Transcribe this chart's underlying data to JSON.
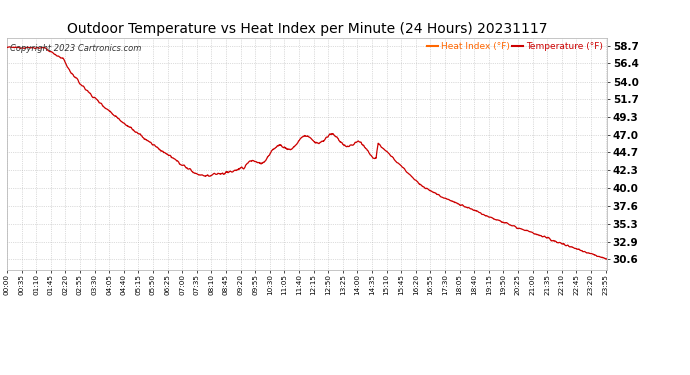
{
  "title": "Outdoor Temperature vs Heat Index per Minute (24 Hours) 20231117",
  "copyright_text": "Copyright 2023 Cartronics.com",
  "legend_heat_index": "Heat Index (°F)",
  "legend_temperature": "Temperature (°F)",
  "line_color": "#CC0000",
  "background_color": "#ffffff",
  "grid_color": "#aaaaaa",
  "title_fontsize": 10,
  "copyright_color": "#333333",
  "legend_heat_color": "#FF6600",
  "legend_temp_color": "#CC0000",
  "ylim_min": 29.2,
  "ylim_max": 59.8,
  "yticks": [
    30.6,
    32.9,
    35.3,
    37.6,
    40.0,
    42.3,
    44.7,
    47.0,
    49.3,
    51.7,
    54.0,
    56.4,
    58.7
  ],
  "total_minutes": 1440,
  "xtick_labels": [
    "00:00",
    "00:35",
    "01:10",
    "01:45",
    "02:20",
    "02:55",
    "03:30",
    "04:05",
    "04:40",
    "05:15",
    "05:50",
    "06:25",
    "07:00",
    "07:35",
    "08:10",
    "08:45",
    "09:20",
    "09:55",
    "10:30",
    "11:05",
    "11:40",
    "12:15",
    "12:50",
    "13:25",
    "14:00",
    "14:35",
    "15:10",
    "15:45",
    "16:20",
    "16:55",
    "17:30",
    "18:05",
    "18:40",
    "19:15",
    "19:50",
    "20:25",
    "21:00",
    "21:35",
    "22:10",
    "22:45",
    "23:20",
    "23:55"
  ]
}
